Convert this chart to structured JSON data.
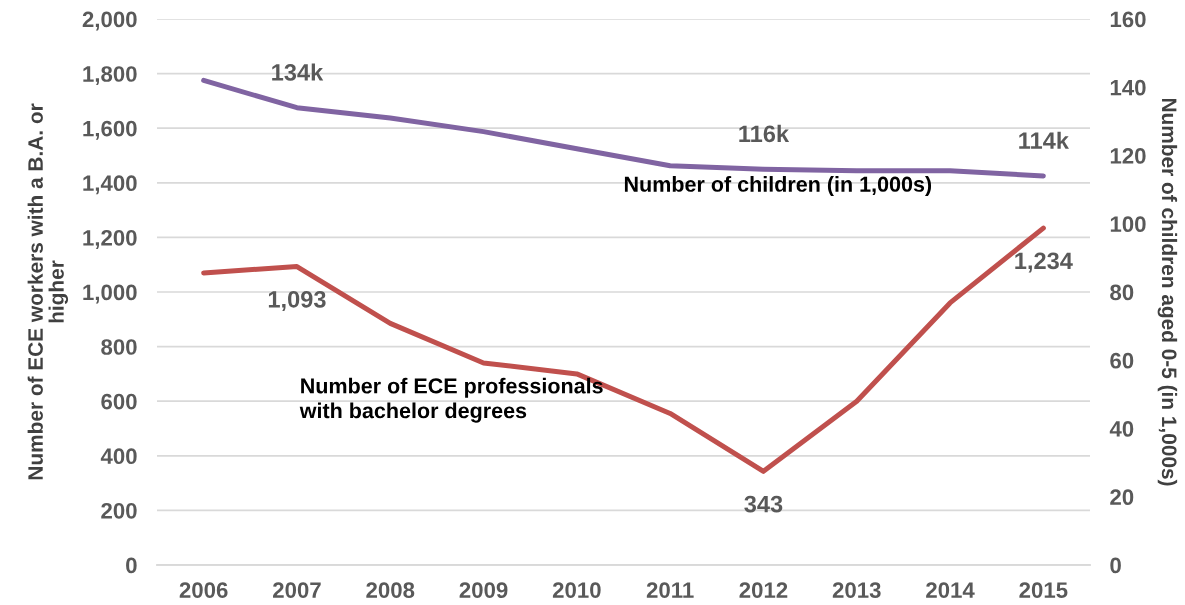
{
  "chart_data": {
    "type": "line",
    "ylabel": "Number of ECE workers with a B.A. or\nhigher",
    "y2label": "Number of children aged 0-5 (in 1,000s)",
    "categories": [
      "2006",
      "2007",
      "2008",
      "2009",
      "2010",
      "2011",
      "2012",
      "2013",
      "2014",
      "2015"
    ],
    "series": [
      {
        "name": "Number of ECE professionals\nwith bachelor degrees",
        "color": "#c0504d",
        "values": [
          1070,
          1093,
          885,
          740,
          700,
          555,
          343,
          600,
          960,
          1234
        ],
        "value_labels": [
          null,
          "1,093",
          null,
          null,
          null,
          null,
          "343",
          null,
          null,
          "1,234"
        ]
      },
      {
        "name": "Number of children (in 1,000s)",
        "color": "#8064a2",
        "axis": "y2",
        "values": [
          142,
          134,
          131,
          127,
          122,
          117,
          116,
          115.5,
          115.5,
          114
        ],
        "value_labels": [
          null,
          "134k",
          null,
          null,
          null,
          null,
          "116k",
          null,
          null,
          "114k"
        ]
      }
    ],
    "ylim": [
      0,
      2000
    ],
    "yticks": [
      0,
      200,
      400,
      600,
      800,
      {
        "value": 1000,
        "label": "1,000"
      },
      {
        "value": 1200,
        "label": "1,200"
      },
      {
        "value": 1400,
        "label": "1,400"
      },
      {
        "value": 1600,
        "label": "1,600"
      },
      {
        "value": 1800,
        "label": "1,800"
      },
      {
        "value": 2000,
        "label": "2,000"
      }
    ],
    "y2lim": [
      0,
      160
    ],
    "y2ticks": [
      0,
      20,
      40,
      60,
      80,
      100,
      120,
      140,
      160
    ],
    "grid": "y",
    "marker": "none",
    "line_style": "solid"
  }
}
